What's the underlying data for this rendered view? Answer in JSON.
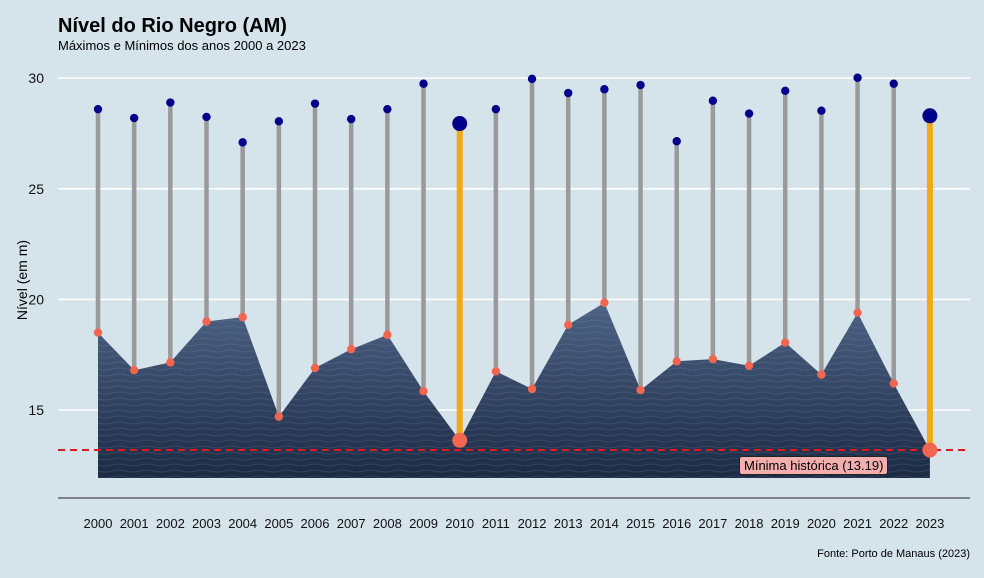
{
  "chart_data": {
    "type": "lollipop-range",
    "title": "Nível do Rio Negro (AM)",
    "subtitle": "Máximos e Mínimos dos anos 2000 a 2023",
    "ylabel": "Nível (em m)",
    "xlabel": "",
    "caption": "Fonte: Porto de Manaus (2023)",
    "ylim": [
      12,
      30.5
    ],
    "yticks": [
      15,
      20,
      25,
      30
    ],
    "grid": true,
    "categories": [
      "2000",
      "2001",
      "2002",
      "2003",
      "2004",
      "2005",
      "2006",
      "2007",
      "2008",
      "2009",
      "2010",
      "2011",
      "2012",
      "2013",
      "2014",
      "2015",
      "2016",
      "2017",
      "2018",
      "2019",
      "2020",
      "2021",
      "2022",
      "2023"
    ],
    "max": [
      28.6,
      28.2,
      28.9,
      28.25,
      27.1,
      28.05,
      28.85,
      28.15,
      28.6,
      29.75,
      27.95,
      28.6,
      29.97,
      29.33,
      29.5,
      29.69,
      27.15,
      28.98,
      28.4,
      29.43,
      28.53,
      30.02,
      29.75,
      28.3
    ],
    "min": [
      18.5,
      16.8,
      17.15,
      19.0,
      19.2,
      14.7,
      16.9,
      17.75,
      18.4,
      15.85,
      13.63,
      16.75,
      15.95,
      18.85,
      19.85,
      15.9,
      17.2,
      17.3,
      17.0,
      18.05,
      16.6,
      19.4,
      16.2,
      13.19
    ],
    "highlight": [
      "2010",
      "2023"
    ],
    "reference_line": {
      "value": 13.19,
      "label": "Mínima histórica (13.19)"
    },
    "colors": {
      "background": "#d5e3eb",
      "segment": "#9a9a9a",
      "segment_highlight": "#f0aa17",
      "max_point": "#00008b",
      "min_point": "#f26650",
      "reference_line": "#d62020",
      "water_top": "#4d6284",
      "water_bottom": "#1c2a44"
    }
  }
}
